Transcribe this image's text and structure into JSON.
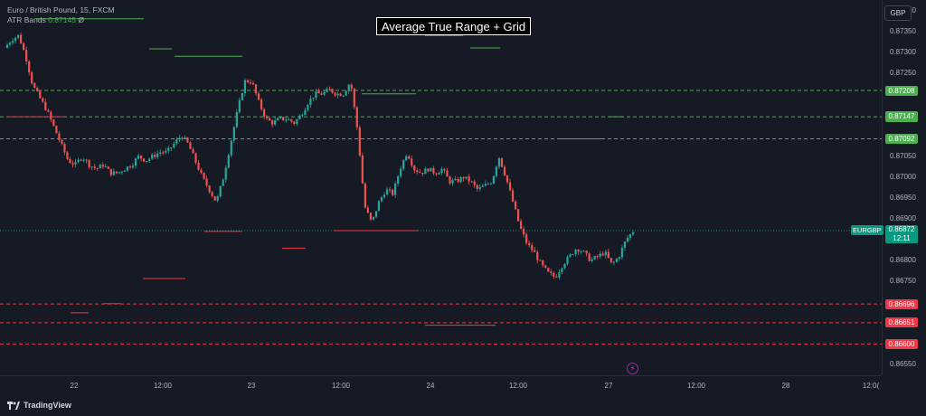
{
  "header": {
    "symbol_line": "Euro / British Pound, 15, FXCM",
    "indicator_name": "ATR Bands",
    "indicator_value": "0.87145",
    "indicator_extra": "Ø",
    "title": "Average True Range + Grid",
    "currency_button": "GBP"
  },
  "price_axis": {
    "ticks": [
      "0.87400",
      "0.87350",
      "0.87300",
      "0.87250",
      "0.87200",
      "0.87150",
      "0.87100",
      "0.87050",
      "0.87000",
      "0.86950",
      "0.86900",
      "0.86850",
      "0.86800",
      "0.86750",
      "0.86700",
      "0.86650",
      "0.86600",
      "0.86550"
    ]
  },
  "time_axis": {
    "ticks": [
      "22",
      "12:00",
      "23",
      "12:00",
      "24",
      "12:00",
      "27",
      "12:00",
      "28",
      "12:0("
    ]
  },
  "levels": {
    "green": [
      "0.87208",
      "0.87145",
      "0.87092"
    ],
    "green_extra": "0.87147",
    "red": [
      "0.86696",
      "0.86651",
      "0.86600"
    ]
  },
  "symbol_tag": "EURGBP",
  "current_price": "0.86872",
  "countdown": "12:11",
  "footer": {
    "brand": "TradingView"
  },
  "colors": {
    "up": "#26a69a",
    "down": "#ef5350",
    "green_level": "#4caf50",
    "red_level": "#f23645",
    "background": "#161a25"
  },
  "chart_data": {
    "type": "candlestick",
    "title": "Average True Range + Grid",
    "x_ticks": [
      "22",
      "12:00",
      "23",
      "12:00",
      "24",
      "12:00",
      "27",
      "12:00",
      "28",
      "12:0("
    ],
    "ylim": [
      0.86525,
      0.87425
    ],
    "close_path": [
      0.8731,
      0.8733,
      0.8734,
      0.8729,
      0.8722,
      0.8719,
      0.8716,
      0.8712,
      0.8708,
      0.8704,
      0.8703,
      0.8705,
      0.8703,
      0.8702,
      0.8703,
      0.8701,
      0.8701,
      0.8702,
      0.8703,
      0.8705,
      0.8704,
      0.8705,
      0.8706,
      0.8706,
      0.8708,
      0.871,
      0.8708,
      0.8704,
      0.87,
      0.8697,
      0.8694,
      0.87,
      0.8708,
      0.8716,
      0.8723,
      0.8723,
      0.8718,
      0.8714,
      0.8713,
      0.8714,
      0.8714,
      0.8713,
      0.8715,
      0.8718,
      0.872,
      0.872,
      0.8721,
      0.872,
      0.872,
      0.8723,
      0.8711,
      0.8693,
      0.8689,
      0.8694,
      0.8697,
      0.8696,
      0.8702,
      0.8706,
      0.8702,
      0.8701,
      0.8702,
      0.8701,
      0.8702,
      0.8699,
      0.8699,
      0.87,
      0.8699,
      0.8697,
      0.8698,
      0.8699,
      0.8705,
      0.87,
      0.8694,
      0.8688,
      0.8684,
      0.8682,
      0.8679,
      0.8677,
      0.8676,
      0.8679,
      0.8681,
      0.8683,
      0.8682,
      0.868,
      0.8681,
      0.8682,
      0.8679,
      0.8681,
      0.8685,
      0.8687
    ],
    "green_levels": [
      0.87208,
      0.87145,
      0.87092
    ],
    "red_levels": [
      0.86696,
      0.86651,
      0.866
    ],
    "current_price": 0.86872
  }
}
